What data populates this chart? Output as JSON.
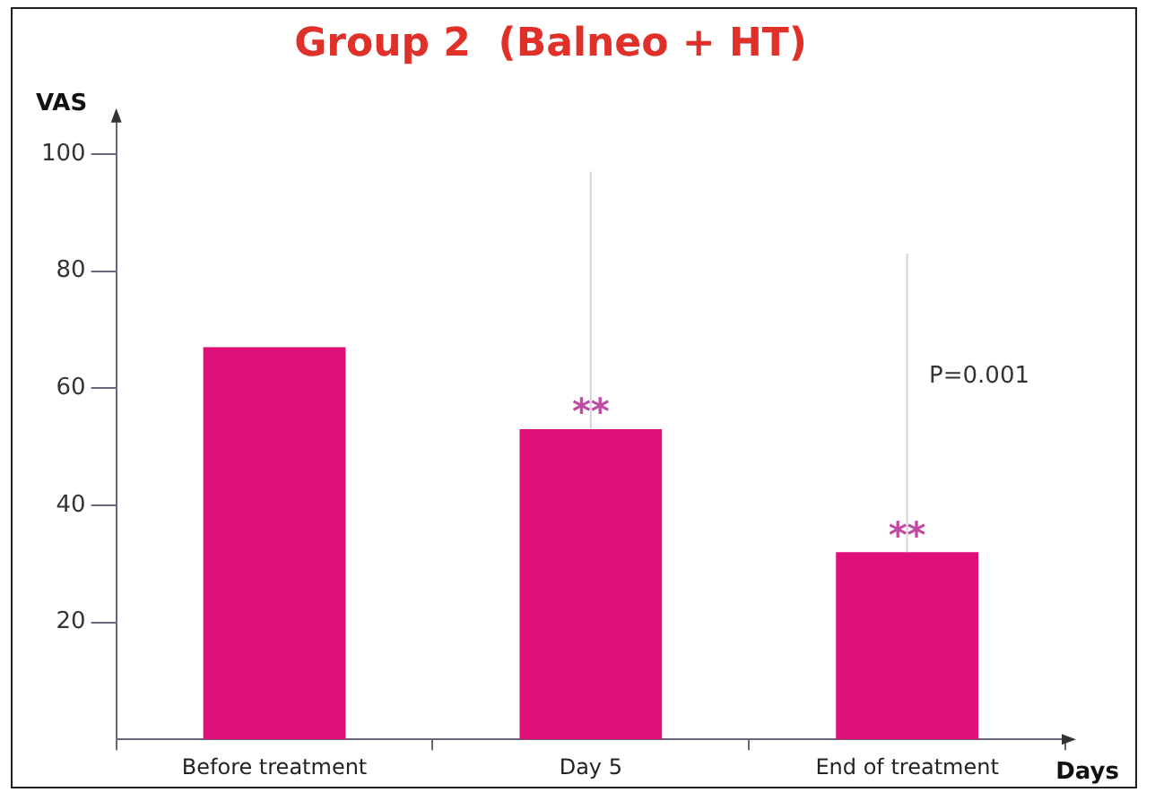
{
  "chart_data": {
    "type": "bar",
    "title": "Group 2  (Balneo + HT)",
    "xlabel": "Days",
    "ylabel": "VAS",
    "categories": [
      "Before treatment",
      "Day 5",
      "End of treatment"
    ],
    "values": [
      67,
      53,
      32
    ],
    "errors": [
      null,
      [
        53,
        97
      ],
      [
        32,
        83
      ]
    ],
    "color": "#e0107a",
    "ylim": [
      0,
      106
    ],
    "yticks": [
      20,
      40,
      60,
      80,
      100
    ],
    "grid": false,
    "annotations": [
      {
        "text": "**",
        "x": "Day 5",
        "y": 53
      },
      {
        "text": "**",
        "x": "End of treatment",
        "y": 32
      },
      "P=0.001"
    ]
  }
}
